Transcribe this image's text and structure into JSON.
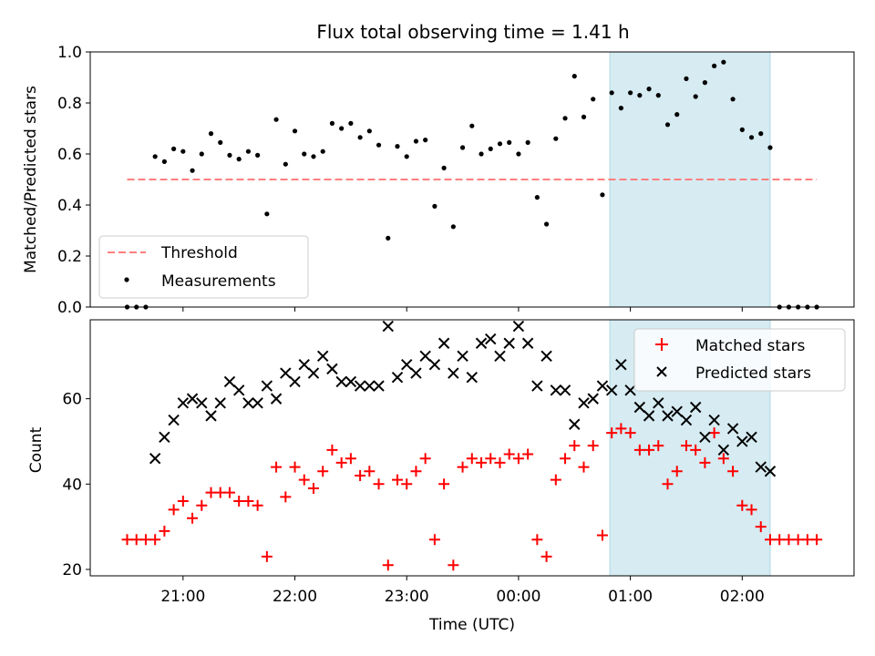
{
  "chart_data": [
    {
      "type": "scatter",
      "title": "Flux total observing time = 1.41 h",
      "ylabel": "Matched/Predicted stars",
      "ylim": [
        0,
        1.0
      ],
      "yticks": [
        0.0,
        0.2,
        0.4,
        0.6,
        0.8,
        1.0
      ],
      "ytick_labels": [
        "0.0",
        "0.2",
        "0.4",
        "0.6",
        "0.8",
        "1.0"
      ],
      "xlim_hours": [
        -3.83,
        3.0
      ],
      "grid": false,
      "legend_position": "lower-left",
      "legend": [
        {
          "label": "Threshold",
          "style": "dashed-line",
          "color": "#ff7f7f"
        },
        {
          "label": "Measurements",
          "style": "dot",
          "color": "#000000"
        }
      ],
      "threshold": {
        "value": 0.5,
        "x_start": "20:30",
        "x_end": "02:40",
        "color": "#ff7f7f"
      },
      "shaded_interval": {
        "x_start": "00:49",
        "x_end": "02:15",
        "color": "#add8e6"
      },
      "series": [
        {
          "name": "Measurements",
          "x": [
            "20:30",
            "20:35",
            "20:40",
            "20:45",
            "20:50",
            "20:55",
            "21:00",
            "21:05",
            "21:10",
            "21:15",
            "21:20",
            "21:25",
            "21:30",
            "21:35",
            "21:40",
            "21:45",
            "21:50",
            "21:55",
            "22:00",
            "22:05",
            "22:10",
            "22:15",
            "22:20",
            "22:25",
            "22:30",
            "22:35",
            "22:40",
            "22:45",
            "22:50",
            "22:55",
            "23:00",
            "23:05",
            "23:10",
            "23:15",
            "23:20",
            "23:25",
            "23:30",
            "23:35",
            "23:40",
            "23:45",
            "23:50",
            "23:55",
            "00:00",
            "00:05",
            "00:10",
            "00:15",
            "00:20",
            "00:25",
            "00:30",
            "00:35",
            "00:40",
            "00:45",
            "00:50",
            "00:55",
            "01:00",
            "01:05",
            "01:10",
            "01:15",
            "01:20",
            "01:25",
            "01:30",
            "01:35",
            "01:40",
            "01:45",
            "01:50",
            "01:55",
            "02:00",
            "02:05",
            "02:10",
            "02:15",
            "02:20",
            "02:25",
            "02:30",
            "02:35",
            "02:40"
          ],
          "values": [
            0.0,
            0.0,
            0.0,
            0.59,
            0.57,
            0.62,
            0.61,
            0.535,
            0.6,
            0.68,
            0.645,
            0.595,
            0.58,
            0.61,
            0.595,
            0.365,
            0.735,
            0.56,
            0.69,
            0.6,
            0.59,
            0.61,
            0.72,
            0.7,
            0.72,
            0.665,
            0.69,
            0.635,
            0.27,
            0.63,
            0.59,
            0.65,
            0.655,
            0.395,
            0.545,
            0.315,
            0.625,
            0.71,
            0.6,
            0.62,
            0.64,
            0.645,
            0.6,
            0.645,
            0.43,
            0.325,
            0.66,
            0.74,
            0.905,
            0.745,
            0.815,
            0.44,
            0.84,
            0.78,
            0.84,
            0.83,
            0.855,
            0.83,
            0.715,
            0.755,
            0.895,
            0.825,
            0.88,
            0.945,
            0.96,
            0.815,
            0.695,
            0.665,
            0.68,
            0.625,
            0.0,
            0.0,
            0.0,
            0.0,
            0.0
          ]
        }
      ]
    },
    {
      "type": "scatter",
      "xlabel": "Time (UTC)",
      "ylabel": "Count",
      "ylim": [
        18.5,
        78.5
      ],
      "yticks": [
        20,
        40,
        60
      ],
      "ytick_labels": [
        "20",
        "40",
        "60"
      ],
      "xlim_hours": [
        -3.83,
        3.0
      ],
      "xticks_hours": [
        -3,
        -2,
        -1,
        0,
        1,
        2
      ],
      "xtick_labels": [
        "21:00",
        "22:00",
        "23:00",
        "00:00",
        "01:00",
        "02:00"
      ],
      "grid": false,
      "legend_position": "top-right",
      "legend": [
        {
          "label": "Matched stars",
          "style": "plus",
          "color": "#ff0000"
        },
        {
          "label": "Predicted stars",
          "style": "x",
          "color": "#000000"
        }
      ],
      "shaded_interval": {
        "x_start": "00:49",
        "x_end": "02:15",
        "color": "#add8e6"
      },
      "series": [
        {
          "name": "Matched stars",
          "x": [
            "20:30",
            "20:35",
            "20:40",
            "20:45",
            "20:50",
            "20:55",
            "21:00",
            "21:05",
            "21:10",
            "21:15",
            "21:20",
            "21:25",
            "21:30",
            "21:35",
            "21:40",
            "21:45",
            "21:50",
            "21:55",
            "22:00",
            "22:05",
            "22:10",
            "22:15",
            "22:20",
            "22:25",
            "22:30",
            "22:35",
            "22:40",
            "22:45",
            "22:50",
            "22:55",
            "23:00",
            "23:05",
            "23:10",
            "23:15",
            "23:20",
            "23:25",
            "23:30",
            "23:35",
            "23:40",
            "23:45",
            "23:50",
            "23:55",
            "00:00",
            "00:05",
            "00:10",
            "00:15",
            "00:20",
            "00:25",
            "00:30",
            "00:35",
            "00:40",
            "00:45",
            "00:50",
            "00:55",
            "01:00",
            "01:05",
            "01:10",
            "01:15",
            "01:20",
            "01:25",
            "01:30",
            "01:35",
            "01:40",
            "01:45",
            "01:50",
            "01:55",
            "02:00",
            "02:05",
            "02:10",
            "02:15",
            "02:20",
            "02:25",
            "02:30",
            "02:35",
            "02:40"
          ],
          "values": [
            27,
            27,
            27,
            27,
            29,
            34,
            36,
            32,
            35,
            38,
            38,
            38,
            36,
            36,
            35,
            23,
            44,
            37,
            44,
            41,
            39,
            43,
            48,
            45,
            46,
            42,
            43,
            40,
            21,
            41,
            40,
            43,
            46,
            27,
            40,
            21,
            44,
            46,
            45,
            46,
            45,
            47,
            46,
            47,
            27,
            23,
            41,
            46,
            49,
            44,
            49,
            28,
            52,
            53,
            52,
            48,
            48,
            49,
            40,
            43,
            49,
            48,
            45,
            52,
            46,
            43,
            35,
            34,
            30,
            27,
            27,
            27,
            27,
            27,
            27
          ]
        },
        {
          "name": "Predicted stars",
          "x": [
            "20:45",
            "20:50",
            "20:55",
            "21:00",
            "21:05",
            "21:10",
            "21:15",
            "21:20",
            "21:25",
            "21:30",
            "21:35",
            "21:40",
            "21:45",
            "21:50",
            "21:55",
            "22:00",
            "22:05",
            "22:10",
            "22:15",
            "22:20",
            "22:25",
            "22:30",
            "22:35",
            "22:40",
            "22:45",
            "22:50",
            "22:55",
            "23:00",
            "23:05",
            "23:10",
            "23:15",
            "23:20",
            "23:25",
            "23:30",
            "23:35",
            "23:40",
            "23:45",
            "23:50",
            "23:55",
            "00:00",
            "00:05",
            "00:10",
            "00:15",
            "00:20",
            "00:25",
            "00:30",
            "00:35",
            "00:40",
            "00:45",
            "00:50",
            "00:55",
            "01:00",
            "01:05",
            "01:10",
            "01:15",
            "01:20",
            "01:25",
            "01:30",
            "01:35",
            "01:40",
            "01:45",
            "01:50",
            "01:55",
            "02:00",
            "02:05",
            "02:10",
            "02:15"
          ],
          "values": [
            46,
            51,
            55,
            59,
            60,
            59,
            56,
            59,
            64,
            62,
            59,
            59,
            63,
            60,
            66,
            64,
            68,
            66,
            70,
            67,
            64,
            64,
            63,
            63,
            63,
            77,
            65,
            68,
            66,
            70,
            68,
            73,
            66,
            70,
            65,
            73,
            74,
            70,
            73,
            77,
            73,
            63,
            70,
            62,
            62,
            54,
            59,
            60,
            63,
            62,
            68,
            62,
            58,
            56,
            59,
            56,
            57,
            55,
            58,
            51,
            55,
            48,
            53,
            50,
            51,
            44,
            43
          ]
        }
      ]
    }
  ]
}
